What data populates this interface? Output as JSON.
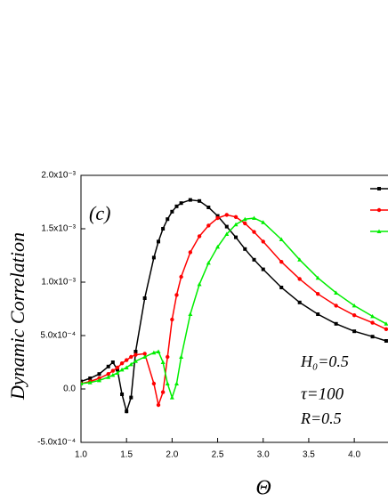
{
  "chart_data": {
    "type": "line",
    "xlabel": "Θ",
    "ylabel": "Dynamic Correlation",
    "annotations": [
      "(c)",
      "H₀=0.5",
      "τ=100",
      "R=0.5"
    ],
    "x": [
      1.0,
      1.1,
      1.2,
      1.3,
      1.35,
      1.4,
      1.45,
      1.5,
      1.55,
      1.6,
      1.7,
      1.8,
      1.85,
      1.9,
      1.95,
      2.0,
      2.05,
      2.1,
      2.2,
      2.3,
      2.4,
      2.5,
      2.6,
      2.7,
      2.8,
      2.9,
      3.0,
      3.2,
      3.4,
      3.6,
      3.8,
      4.0,
      4.2,
      4.35
    ],
    "series": [
      {
        "color": "#000000",
        "marker": "square",
        "values": [
          7e-05,
          0.0001,
          0.00014,
          0.00021,
          0.00025,
          0.00018,
          -5e-05,
          -0.00021,
          -8e-05,
          0.00035,
          0.00085,
          0.00123,
          0.00138,
          0.0015,
          0.00159,
          0.00166,
          0.00171,
          0.00174,
          0.00177,
          0.00176,
          0.0017,
          0.00162,
          0.00152,
          0.00142,
          0.00131,
          0.00121,
          0.00112,
          0.00095,
          0.00081,
          0.0007,
          0.00061,
          0.00054,
          0.00049,
          0.00045
        ]
      },
      {
        "color": "#ff0000",
        "marker": "circle",
        "values": [
          5e-05,
          7e-05,
          0.0001,
          0.00014,
          0.00017,
          0.0002,
          0.00024,
          0.00027,
          0.0003,
          0.00032,
          0.00033,
          5e-05,
          -0.00015,
          -3e-05,
          0.0003,
          0.00065,
          0.00088,
          0.00105,
          0.00128,
          0.00143,
          0.00153,
          0.0016,
          0.00163,
          0.00161,
          0.00155,
          0.00147,
          0.00138,
          0.00119,
          0.00103,
          0.00089,
          0.00078,
          0.00069,
          0.00062,
          0.00056
        ]
      },
      {
        "color": "#00ee00",
        "marker": "triangle",
        "values": [
          5e-05,
          6e-05,
          8e-05,
          0.00011,
          0.00013,
          0.00015,
          0.00018,
          0.0002,
          0.00023,
          0.00026,
          0.0003,
          0.00034,
          0.00035,
          0.00025,
          5e-05,
          -8e-05,
          5e-05,
          0.0003,
          0.0007,
          0.00098,
          0.00118,
          0.00133,
          0.00145,
          0.00154,
          0.00159,
          0.0016,
          0.00156,
          0.0014,
          0.00121,
          0.00104,
          0.0009,
          0.00078,
          0.00068,
          0.00061
        ]
      }
    ],
    "xlim": [
      1.0,
      4.37
    ],
    "ylim": [
      -0.0005,
      0.002
    ],
    "xticks": [
      {
        "value": 1,
        "label": "1.0"
      },
      1.5,
      {
        "value": 2,
        "label": "2.0"
      },
      2.5,
      {
        "value": 3,
        "label": "3.0"
      },
      3.5,
      {
        "value": 4,
        "label": "4.0"
      }
    ],
    "yticks": [
      {
        "value": -0.0005,
        "label": "-5.0x10⁻⁴"
      },
      {
        "value": 0,
        "label": "0.0"
      },
      {
        "value": 0.0005,
        "label": "5.0x10⁻⁴"
      },
      {
        "value": 0.001,
        "label": "1.0x10⁻³"
      },
      {
        "value": 0.0015,
        "label": "1.5x10⁻³"
      },
      {
        "value": 0.002,
        "label": "2.0x10⁻³"
      }
    ],
    "legend": "upper right"
  }
}
